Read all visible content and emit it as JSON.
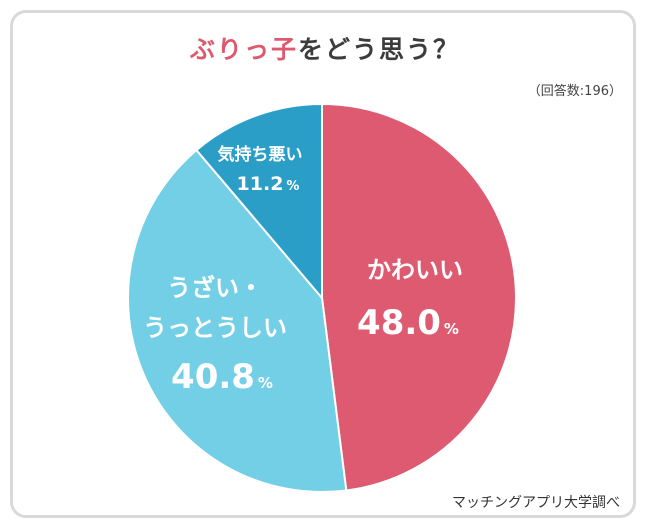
{
  "title": {
    "accent": "ぶりっ子",
    "rest": "をどう思う？"
  },
  "note": "（回答数:196）",
  "source": "マッチングアプリ大学調べ",
  "colors": {
    "accent": "#dd5a6e"
  },
  "chart_data": {
    "type": "pie",
    "title": "ぶりっ子をどう思う？",
    "slices": [
      {
        "label": "かわいい",
        "value": 48.0,
        "display": "48.0",
        "unit": "%",
        "color": "#de5a70",
        "lines": [
          "かわいい"
        ]
      },
      {
        "label": "うざい・うっとうしい",
        "value": 40.8,
        "display": "40.8",
        "unit": "%",
        "color": "#72cfe6",
        "lines": [
          "うざい・",
          "うっとうしい"
        ]
      },
      {
        "label": "気持ち悪い",
        "value": 11.2,
        "display": "11.2",
        "unit": "%",
        "color": "#2b9ec8",
        "lines": [
          "気持ち悪い"
        ]
      }
    ]
  }
}
